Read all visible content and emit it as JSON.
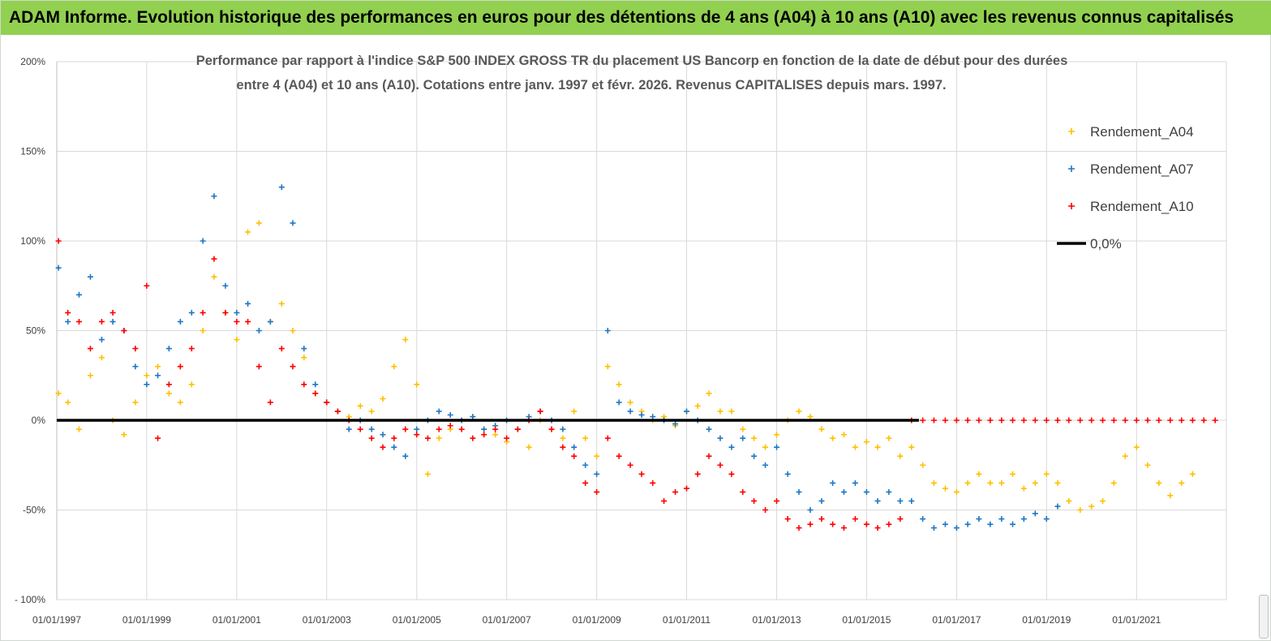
{
  "header": {
    "banner_title": "ADAM Informe. Evolution historique des performances en euros pour des détentions de 4 ans (A04) à 10 ans (A10) avec les revenus connus capitalisés",
    "banner_color": "#92d050"
  },
  "chart_data": {
    "type": "scatter",
    "title_lines": [
      "Performance par rapport à l'indice S&P 500 INDEX GROSS TR  du placement US Bancorp en fonction de la date de début pour des durées",
      "entre 4 (A04) et 10 ans (A10).  Cotations entre janv. 1997 et févr. 2026. Revenus  CAPITALISES depuis mars. 1997."
    ],
    "xlabel": "",
    "ylabel": "",
    "x_range": [
      "1997-01-01",
      "2022-12-31"
    ],
    "ylim": [
      -100,
      200
    ],
    "y_ticks": [
      {
        "value": 200,
        "label": "200%"
      },
      {
        "value": 150,
        "label": "150%"
      },
      {
        "value": 100,
        "label": "100%"
      },
      {
        "value": 50,
        "label": "50%"
      },
      {
        "value": 0,
        "label": "0%"
      },
      {
        "value": -50,
        "label": "-50%"
      },
      {
        "value": -100,
        "label": "- 100%"
      }
    ],
    "x_ticks": [
      {
        "date": "1997-01-01",
        "label": "01/01/1997"
      },
      {
        "date": "1999-01-01",
        "label": "01/01/1999"
      },
      {
        "date": "2001-01-01",
        "label": "01/01/2001"
      },
      {
        "date": "2003-01-01",
        "label": "01/01/2003"
      },
      {
        "date": "2005-01-01",
        "label": "01/01/2005"
      },
      {
        "date": "2007-01-01",
        "label": "01/01/2007"
      },
      {
        "date": "2009-01-01",
        "label": "01/01/2009"
      },
      {
        "date": "2011-01-01",
        "label": "01/01/2011"
      },
      {
        "date": "2013-01-01",
        "label": "01/01/2013"
      },
      {
        "date": "2015-01-01",
        "label": "01/01/2015"
      },
      {
        "date": "2017-01-01",
        "label": "01/01/2017"
      },
      {
        "date": "2019-01-01",
        "label": "01/01/2019"
      },
      {
        "date": "2021-01-01",
        "label": "01/01/2021"
      }
    ],
    "grid": {
      "horizontal": true,
      "vertical": true,
      "color": "#d9d9d9"
    },
    "legend_placement": "top-right",
    "series": [
      {
        "name": "Rendement_A04",
        "color": "#ffc000",
        "marker": "plus",
        "x": [
          "1997-01-15",
          "1997-04-01",
          "1997-07-01",
          "1997-10-01",
          "1998-01-01",
          "1998-04-01",
          "1998-07-01",
          "1998-10-01",
          "1999-01-01",
          "1999-04-01",
          "1999-07-01",
          "1999-10-01",
          "2000-01-01",
          "2000-04-01",
          "2000-07-01",
          "2000-10-01",
          "2001-01-01",
          "2001-04-01",
          "2001-07-01",
          "2001-10-01",
          "2002-01-01",
          "2002-04-01",
          "2002-07-01",
          "2002-10-01",
          "2003-01-01",
          "2003-04-01",
          "2003-07-01",
          "2003-10-01",
          "2004-01-01",
          "2004-04-01",
          "2004-07-01",
          "2004-10-01",
          "2005-01-01",
          "2005-04-01",
          "2005-07-01",
          "2005-10-01",
          "2006-01-01",
          "2006-04-01",
          "2006-07-01",
          "2006-10-01",
          "2007-01-01",
          "2007-04-01",
          "2007-07-01",
          "2007-10-01",
          "2008-01-01",
          "2008-04-01",
          "2008-07-01",
          "2008-10-01",
          "2009-01-01",
          "2009-04-01",
          "2009-07-01",
          "2009-10-01",
          "2010-01-01",
          "2010-04-01",
          "2010-07-01",
          "2010-10-01",
          "2011-01-01",
          "2011-04-01",
          "2011-07-01",
          "2011-10-01",
          "2012-01-01",
          "2012-04-01",
          "2012-07-01",
          "2012-10-01",
          "2013-01-01",
          "2013-04-01",
          "2013-07-01",
          "2013-10-01",
          "2014-01-01",
          "2014-04-01",
          "2014-07-01",
          "2014-10-01",
          "2015-01-01",
          "2015-04-01",
          "2015-07-01",
          "2015-10-01",
          "2016-01-01",
          "2016-04-01",
          "2016-07-01",
          "2016-10-01",
          "2017-01-01",
          "2017-04-01",
          "2017-07-01",
          "2017-10-01",
          "2018-01-01",
          "2018-04-01",
          "2018-07-01",
          "2018-10-01",
          "2019-01-01",
          "2019-04-01",
          "2019-07-01",
          "2019-10-01",
          "2020-01-01",
          "2020-04-01",
          "2020-07-01",
          "2020-10-01",
          "2021-01-01",
          "2021-04-01",
          "2021-07-01",
          "2021-10-01",
          "2022-01-01",
          "2022-04-01"
        ],
        "y": [
          15,
          10,
          -5,
          25,
          35,
          0,
          -8,
          10,
          25,
          30,
          15,
          10,
          20,
          50,
          80,
          60,
          45,
          105,
          110,
          55,
          65,
          50,
          35,
          15,
          10,
          5,
          2,
          8,
          5,
          12,
          30,
          45,
          20,
          -30,
          -10,
          -5,
          0,
          2,
          -5,
          -8,
          -12,
          -5,
          -15,
          0,
          -5,
          -10,
          5,
          -10,
          -20,
          30,
          20,
          10,
          5,
          0,
          2,
          -3,
          5,
          8,
          15,
          5,
          5,
          -5,
          -10,
          -15,
          -8,
          0,
          5,
          2,
          -5,
          -10,
          -8,
          -15,
          -12,
          -15,
          -10,
          -20,
          -15,
          -25,
          -35,
          -38,
          -40,
          -35,
          -30,
          -35,
          -35,
          -30,
          -38,
          -35,
          -30,
          -35,
          -45,
          -50,
          -48,
          -45,
          -35,
          -20,
          -15,
          -25,
          -35,
          -42,
          -35,
          -30
        ]
      },
      {
        "name": "Rendement_A07",
        "color": "#1f77c4",
        "marker": "plus",
        "x": [
          "1997-01-15",
          "1997-04-01",
          "1997-07-01",
          "1997-10-01",
          "1998-01-01",
          "1998-04-01",
          "1998-07-01",
          "1998-10-01",
          "1999-01-01",
          "1999-04-01",
          "1999-07-01",
          "1999-10-01",
          "2000-01-01",
          "2000-04-01",
          "2000-07-01",
          "2000-10-01",
          "2001-01-01",
          "2001-04-01",
          "2001-07-01",
          "2001-10-01",
          "2002-01-01",
          "2002-04-01",
          "2002-07-01",
          "2002-10-01",
          "2003-01-01",
          "2003-04-01",
          "2003-07-01",
          "2003-10-01",
          "2004-01-01",
          "2004-04-01",
          "2004-07-01",
          "2004-10-01",
          "2005-01-01",
          "2005-04-01",
          "2005-07-01",
          "2005-10-01",
          "2006-01-01",
          "2006-04-01",
          "2006-07-01",
          "2006-10-01",
          "2007-01-01",
          "2007-04-01",
          "2007-07-01",
          "2007-10-01",
          "2008-01-01",
          "2008-04-01",
          "2008-07-01",
          "2008-10-01",
          "2009-01-01",
          "2009-04-01",
          "2009-07-01",
          "2009-10-01",
          "2010-01-01",
          "2010-04-01",
          "2010-07-01",
          "2010-10-01",
          "2011-01-01",
          "2011-04-01",
          "2011-07-01",
          "2011-10-01",
          "2012-01-01",
          "2012-04-01",
          "2012-07-01",
          "2012-10-01",
          "2013-01-01",
          "2013-04-01",
          "2013-07-01",
          "2013-10-01",
          "2014-01-01",
          "2014-04-01",
          "2014-07-01",
          "2014-10-01",
          "2015-01-01",
          "2015-04-01",
          "2015-07-01",
          "2015-10-01",
          "2016-01-01",
          "2016-04-01",
          "2016-07-01",
          "2016-10-01",
          "2017-01-01",
          "2017-04-01",
          "2017-07-01",
          "2017-10-01",
          "2018-01-01",
          "2018-04-01",
          "2018-07-01",
          "2018-10-01",
          "2019-01-01",
          "2019-04-01"
        ],
        "y": [
          85,
          55,
          70,
          80,
          45,
          55,
          50,
          30,
          20,
          25,
          40,
          55,
          60,
          100,
          125,
          75,
          60,
          65,
          50,
          55,
          130,
          110,
          40,
          20,
          10,
          5,
          -5,
          0,
          -5,
          -8,
          -15,
          -20,
          -5,
          0,
          5,
          3,
          0,
          2,
          -5,
          -3,
          0,
          -5,
          2,
          5,
          0,
          -5,
          -15,
          -25,
          -30,
          50,
          10,
          5,
          3,
          2,
          0,
          -2,
          5,
          0,
          -5,
          -10,
          -15,
          -10,
          -20,
          -25,
          -15,
          -30,
          -40,
          -50,
          -45,
          -35,
          -40,
          -35,
          -40,
          -45,
          -40,
          -45,
          -45,
          -55,
          -60,
          -58,
          -60,
          -58,
          -55,
          -58,
          -55,
          -58,
          -55,
          -52,
          -55,
          -48
        ]
      },
      {
        "name": "Rendement_A10",
        "color": "#ff0000",
        "marker": "plus",
        "x": [
          "1997-01-15",
          "1997-04-01",
          "1997-07-01",
          "1997-10-01",
          "1998-01-01",
          "1998-04-01",
          "1998-07-01",
          "1998-10-01",
          "1999-01-01",
          "1999-04-01",
          "1999-07-01",
          "1999-10-01",
          "2000-01-01",
          "2000-04-01",
          "2000-07-01",
          "2000-10-01",
          "2001-01-01",
          "2001-04-01",
          "2001-07-01",
          "2001-10-01",
          "2002-01-01",
          "2002-04-01",
          "2002-07-01",
          "2002-10-01",
          "2003-01-01",
          "2003-04-01",
          "2003-07-01",
          "2003-10-01",
          "2004-01-01",
          "2004-04-01",
          "2004-07-01",
          "2004-10-01",
          "2005-01-01",
          "2005-04-01",
          "2005-07-01",
          "2005-10-01",
          "2006-01-01",
          "2006-04-01",
          "2006-07-01",
          "2006-10-01",
          "2007-01-01",
          "2007-04-01",
          "2007-07-01",
          "2007-10-01",
          "2008-01-01",
          "2008-04-01",
          "2008-07-01",
          "2008-10-01",
          "2009-01-01",
          "2009-04-01",
          "2009-07-01",
          "2009-10-01",
          "2010-01-01",
          "2010-04-01",
          "2010-07-01",
          "2010-10-01",
          "2011-01-01",
          "2011-04-01",
          "2011-07-01",
          "2011-10-01",
          "2012-01-01",
          "2012-04-01",
          "2012-07-01",
          "2012-10-01",
          "2013-01-01",
          "2013-04-01",
          "2013-07-01",
          "2013-10-01",
          "2014-01-01",
          "2014-04-01",
          "2014-07-01",
          "2014-10-01",
          "2015-01-01",
          "2015-04-01",
          "2015-07-01",
          "2015-10-01",
          "2016-01-01",
          "2016-04-01",
          "2016-07-01",
          "2016-10-01",
          "2017-01-01",
          "2017-04-01",
          "2017-07-01",
          "2017-10-01",
          "2018-01-01",
          "2018-04-01",
          "2018-07-01",
          "2018-10-01",
          "2019-01-01",
          "2019-04-01",
          "2019-07-01",
          "2019-10-01",
          "2020-01-01",
          "2020-04-01",
          "2020-07-01",
          "2020-10-01",
          "2021-01-01",
          "2021-04-01",
          "2021-07-01",
          "2021-10-01",
          "2022-01-01",
          "2022-04-01",
          "2022-07-01",
          "2022-10-01"
        ],
        "y": [
          100,
          60,
          55,
          40,
          55,
          60,
          50,
          40,
          75,
          -10,
          20,
          30,
          40,
          60,
          90,
          60,
          55,
          55,
          30,
          10,
          40,
          30,
          20,
          15,
          10,
          5,
          0,
          -5,
          -10,
          -15,
          -10,
          -5,
          -8,
          -10,
          -5,
          -3,
          -5,
          -10,
          -8,
          -5,
          -10,
          -5,
          0,
          5,
          -5,
          -15,
          -20,
          -35,
          -40,
          -10,
          -20,
          -25,
          -30,
          -35,
          -45,
          -40,
          -38,
          -30,
          -20,
          -25,
          -30,
          -40,
          -45,
          -50,
          -45,
          -55,
          -60,
          -58,
          -55,
          -58,
          -60,
          -55,
          -58,
          -60,
          -58,
          -55,
          0,
          0,
          0,
          0,
          0,
          0,
          0,
          0,
          0,
          0,
          0,
          0,
          0,
          0,
          0,
          0,
          0,
          0,
          0,
          0,
          0,
          0,
          0,
          0,
          0,
          0,
          0,
          0
        ]
      },
      {
        "name": "0,0%",
        "color": "#000000",
        "marker": "line",
        "x": [
          "1997-01-01",
          "2016-03-01"
        ],
        "y": [
          0,
          0
        ]
      }
    ]
  }
}
